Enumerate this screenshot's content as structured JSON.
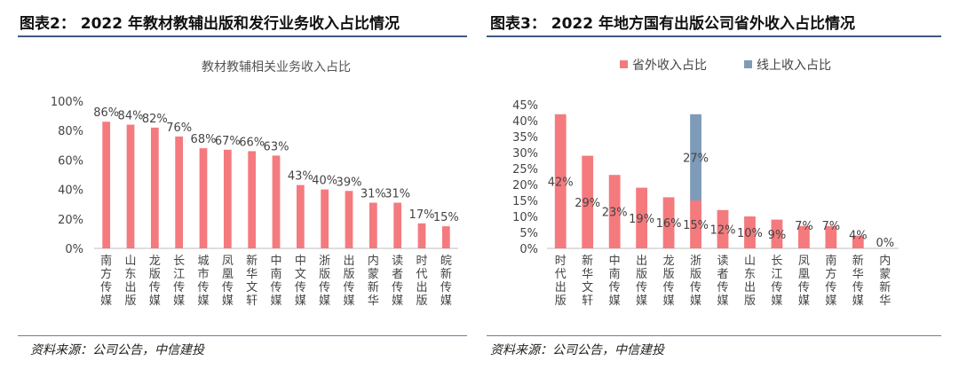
{
  "left_figure": {
    "title": "图表2： 2022 年教材教辅出版和发行业务收入占比情况",
    "source": "资料来源：公司公告，中信建投"
  },
  "right_figure": {
    "title": "图表3： 2022 年地方国有出版公司省外收入占比情况",
    "source": "资料来源：公司公告，中信建投"
  },
  "colors": {
    "bar_red": "#f47a7e",
    "bar_blue": "#7e9bb7",
    "rule": "#3d5a80"
  },
  "chart_data": [
    {
      "type": "bar",
      "title": "教材教辅相关业务收入占比",
      "categories": [
        "南方传媒",
        "山东出版",
        "龙版传媒",
        "长江传媒",
        "城市传媒",
        "凤凰传媒",
        "新华文轩",
        "中南传媒",
        "中文传媒",
        "浙版传媒",
        "出版传媒",
        "内蒙新华",
        "读者传媒",
        "时代出版",
        "皖新传媒"
      ],
      "values": [
        86,
        84,
        82,
        76,
        68,
        67,
        66,
        63,
        43,
        40,
        39,
        31,
        31,
        17,
        15
      ],
      "data_labels": [
        "86%",
        "84%",
        "82%",
        "76%",
        "68%",
        "67%",
        "66%",
        "63%",
        "43%",
        "40%",
        "39%",
        "31%",
        "31%",
        "17%",
        "15%"
      ],
      "ylim": [
        0,
        100
      ],
      "yticks": [
        "0%",
        "20%",
        "40%",
        "60%",
        "80%",
        "100%"
      ],
      "legend": null
    },
    {
      "type": "bar",
      "stacked": true,
      "title": "",
      "categories": [
        "时代出版",
        "新华文轩",
        "中南传媒",
        "出版传媒",
        "龙版传媒",
        "浙版传媒",
        "读者传媒",
        "山东出版",
        "长江传媒",
        "凤凰传媒",
        "南方传媒",
        "新华传媒",
        "内蒙新华"
      ],
      "series": [
        {
          "name": "省外收入占比",
          "values": [
            42,
            29,
            23,
            19,
            16,
            15,
            12,
            10,
            9,
            7,
            7,
            4,
            0
          ],
          "data_labels": [
            "42%",
            "29%",
            "23%",
            "19%",
            "16%",
            "15%",
            "12%",
            "10%",
            "9%",
            "7%",
            "7%",
            "4%",
            "0%"
          ]
        },
        {
          "name": "线上收入占比",
          "values": [
            0,
            0,
            0,
            0,
            0,
            27,
            0,
            0,
            0,
            0,
            0,
            0,
            0
          ],
          "data_labels": [
            "",
            "",
            "",
            "",
            "",
            "27%",
            "",
            "",
            "",
            "",
            "",
            "",
            ""
          ]
        }
      ],
      "ylim": [
        0,
        45
      ],
      "yticks": [
        "0%",
        "5%",
        "10%",
        "15%",
        "20%",
        "25%",
        "30%",
        "35%",
        "40%",
        "45%"
      ],
      "legend": "top-center"
    }
  ]
}
